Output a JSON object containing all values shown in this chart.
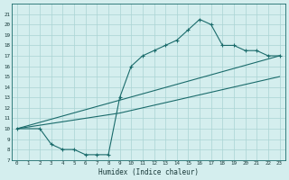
{
  "xlabel": "Humidex (Indice chaleur)",
  "xlim": [
    -0.5,
    23.5
  ],
  "ylim": [
    7,
    22
  ],
  "xticks": [
    0,
    1,
    2,
    3,
    4,
    5,
    6,
    7,
    8,
    9,
    10,
    11,
    12,
    13,
    14,
    15,
    16,
    17,
    18,
    19,
    20,
    21,
    22,
    23
  ],
  "yticks": [
    7,
    8,
    9,
    10,
    11,
    12,
    13,
    14,
    15,
    16,
    17,
    18,
    19,
    20,
    21
  ],
  "bg_color": "#d4eeee",
  "grid_color": "#aad4d4",
  "line_color": "#1a6b6b",
  "line1_x": [
    0,
    2,
    3,
    4,
    5,
    6,
    7,
    8,
    9,
    10,
    11,
    12,
    13,
    14,
    15,
    16,
    17,
    18,
    19,
    20,
    21,
    22,
    23
  ],
  "line1_y": [
    10,
    10,
    8.5,
    8,
    8,
    7.5,
    7.5,
    7.5,
    13,
    16,
    17,
    17.5,
    18,
    18.5,
    19.5,
    20.5,
    20,
    18,
    18,
    17.5,
    17.5,
    17,
    17
  ],
  "line2_x": [
    0,
    23
  ],
  "line2_y": [
    10,
    17
  ],
  "line3_x": [
    0,
    9,
    23
  ],
  "line3_y": [
    10,
    11.5,
    15
  ],
  "spine_color": "#1a6b6b"
}
